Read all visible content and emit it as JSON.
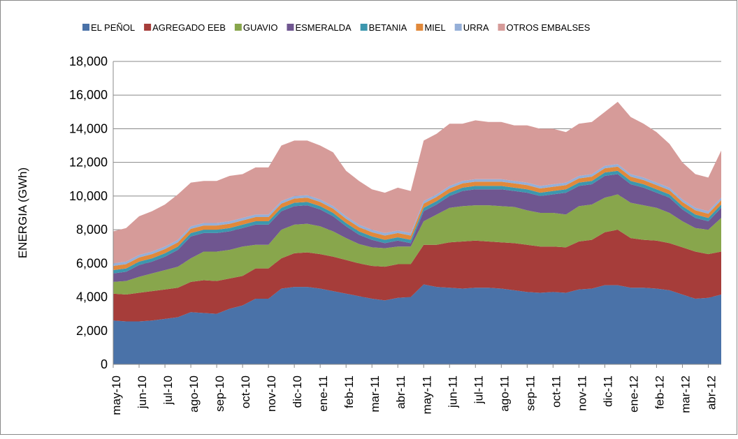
{
  "chart_data": {
    "type": "stacked_area",
    "y_label": "ENERGIA (GWh)",
    "categories": [
      "may-10",
      null,
      "jun-10",
      null,
      "jul-10",
      null,
      "ago-10",
      null,
      "sep-10",
      null,
      "oct-10",
      null,
      "nov-10",
      null,
      "dic-10",
      null,
      "ene-11",
      null,
      "feb-11",
      null,
      "mar-11",
      null,
      "abr-11",
      null,
      "may-11",
      null,
      "jun-11",
      null,
      "jul-11",
      null,
      "ago-11",
      null,
      "sep-11",
      null,
      "oct-11",
      null,
      "nov-11",
      null,
      "dic-11",
      null,
      "ene-12",
      null,
      "feb-12",
      null,
      "mar-12",
      null,
      "abr-12",
      null
    ],
    "series": [
      {
        "name": "EL PEÑOL",
        "color": "#4a72a8",
        "values": [
          2600,
          2550,
          2550,
          2600,
          2700,
          2800,
          3100,
          3050,
          3000,
          3300,
          3500,
          3900,
          3900,
          4500,
          4600,
          4600,
          4500,
          4350,
          4200,
          4050,
          3900,
          3800,
          3950,
          4000,
          4750,
          4600,
          4550,
          4500,
          4550,
          4550,
          4500,
          4400,
          4300,
          4250,
          4300,
          4250,
          4450,
          4500,
          4700,
          4700,
          4550,
          4550,
          4500,
          4400,
          4150,
          3900,
          3950,
          4150
        ]
      },
      {
        "name": "AGREGADO EEB",
        "color": "#a63d3a",
        "values": [
          1600,
          1600,
          1700,
          1750,
          1750,
          1750,
          1800,
          1950,
          1950,
          1800,
          1750,
          1800,
          1800,
          1800,
          2000,
          2050,
          2050,
          2050,
          2000,
          1950,
          1950,
          2000,
          2000,
          1950,
          2350,
          2500,
          2700,
          2800,
          2800,
          2750,
          2750,
          2800,
          2800,
          2750,
          2700,
          2700,
          2850,
          2900,
          3150,
          3300,
          2950,
          2850,
          2850,
          2800,
          2800,
          2800,
          2600,
          2550
        ]
      },
      {
        "name": "GUAVIO",
        "color": "#88a64c",
        "values": [
          700,
          800,
          950,
          1050,
          1150,
          1250,
          1400,
          1700,
          1750,
          1700,
          1750,
          1400,
          1400,
          1700,
          1700,
          1700,
          1650,
          1500,
          1300,
          1150,
          1100,
          1100,
          1050,
          1050,
          1400,
          1800,
          2050,
          2100,
          2100,
          2150,
          2150,
          2150,
          2050,
          2000,
          2000,
          1950,
          2100,
          2100,
          2050,
          2100,
          2100,
          2050,
          1950,
          1800,
          1550,
          1400,
          1450,
          2000
        ]
      },
      {
        "name": "ESMERALDA",
        "color": "#6f5690",
        "values": [
          500,
          550,
          700,
          700,
          800,
          1000,
          1300,
          1100,
          1100,
          1100,
          1100,
          1200,
          1200,
          1100,
          1100,
          1100,
          1000,
          900,
          700,
          550,
          450,
          300,
          350,
          200,
          600,
          600,
          700,
          900,
          950,
          950,
          1000,
          950,
          1050,
          1000,
          1100,
          1300,
          1200,
          1200,
          1300,
          1200,
          1100,
          1050,
          900,
          900,
          700,
          600,
          500,
          600
        ]
      },
      {
        "name": "BETANIA",
        "color": "#3d97ae",
        "values": [
          200,
          200,
          200,
          200,
          200,
          200,
          200,
          200,
          200,
          200,
          200,
          200,
          200,
          200,
          200,
          200,
          200,
          200,
          200,
          200,
          200,
          200,
          200,
          200,
          200,
          200,
          200,
          200,
          200,
          200,
          200,
          200,
          200,
          200,
          200,
          200,
          200,
          200,
          200,
          200,
          200,
          200,
          200,
          200,
          200,
          200,
          200,
          200
        ]
      },
      {
        "name": "MIEL",
        "color": "#e1893b",
        "values": [
          250,
          250,
          250,
          250,
          250,
          250,
          250,
          250,
          250,
          250,
          250,
          250,
          250,
          250,
          250,
          250,
          250,
          250,
          250,
          250,
          250,
          250,
          250,
          250,
          250,
          250,
          250,
          250,
          250,
          250,
          250,
          250,
          250,
          250,
          250,
          250,
          250,
          250,
          250,
          250,
          250,
          250,
          250,
          250,
          250,
          250,
          250,
          250
        ]
      },
      {
        "name": "URRA",
        "color": "#95afd8",
        "values": [
          150,
          150,
          150,
          150,
          150,
          150,
          150,
          150,
          150,
          150,
          150,
          150,
          150,
          150,
          150,
          150,
          150,
          150,
          150,
          150,
          150,
          150,
          150,
          150,
          150,
          150,
          150,
          150,
          150,
          150,
          150,
          150,
          150,
          150,
          150,
          150,
          150,
          150,
          150,
          150,
          150,
          150,
          150,
          150,
          150,
          150,
          150,
          150
        ]
      },
      {
        "name": "OTROS EMBALSES",
        "color": "#d69b99",
        "values": [
          1900,
          2000,
          2300,
          2400,
          2500,
          2700,
          2600,
          2500,
          2500,
          2700,
          2600,
          2800,
          2800,
          3300,
          3300,
          3250,
          3200,
          3200,
          2700,
          2600,
          2400,
          2400,
          2550,
          2500,
          3600,
          3600,
          3700,
          3400,
          3500,
          3400,
          3400,
          3300,
          3400,
          3400,
          3300,
          3000,
          3100,
          3100,
          3200,
          3700,
          3400,
          3200,
          3000,
          2600,
          2200,
          2000,
          2000,
          2800
        ]
      }
    ],
    "ylim": [
      0,
      18000
    ],
    "yticks": [
      0,
      {
        "value": 2000,
        "label": "2,000"
      },
      {
        "value": 4000,
        "label": "4,000"
      },
      {
        "value": 6000,
        "label": "6,000"
      },
      {
        "value": 8000,
        "label": "8,000"
      },
      {
        "value": 10000,
        "label": "10,000"
      },
      {
        "value": 12000,
        "label": "12,000"
      },
      {
        "value": 14000,
        "label": "14,000"
      },
      {
        "value": 16000,
        "label": "16,000"
      },
      {
        "value": 18000,
        "label": "18,000"
      }
    ],
    "grid": true,
    "legend": "top"
  }
}
